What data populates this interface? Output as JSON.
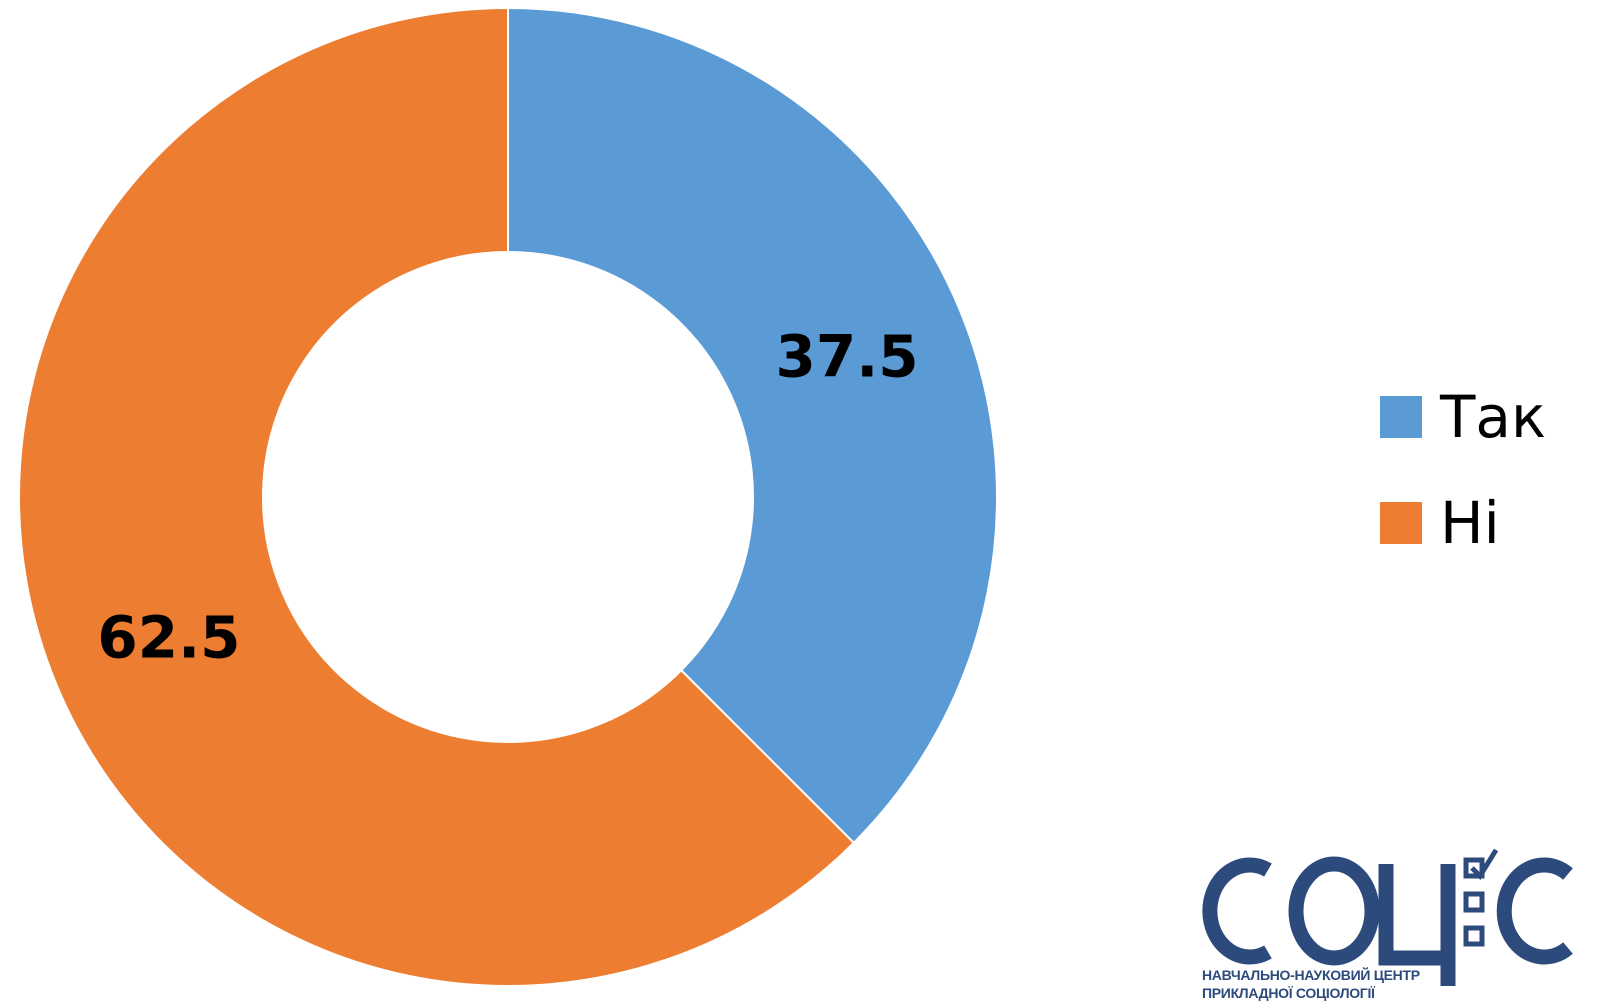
{
  "chart_data": {
    "type": "pie",
    "variant": "doughnut",
    "categories": [
      "Так",
      "Ні"
    ],
    "values": [
      37.5,
      62.5
    ],
    "colors": [
      "#5b9bd5",
      "#ed7d31"
    ],
    "data_labels": [
      "37.5",
      "62.5"
    ],
    "title": "",
    "legend": {
      "placement": "right",
      "entries": [
        "Так",
        "Ні"
      ]
    }
  },
  "logo": {
    "name": "socio-logo",
    "wordmark": "СОЦ",
    "caption_line1": "НАВЧАЛЬНО-НАУКОВИЙ ЦЕНТР",
    "caption_line2": "ПРИКЛАДНОЇ СОЦІОЛОГІЇ",
    "color": "#2d4a7c"
  }
}
